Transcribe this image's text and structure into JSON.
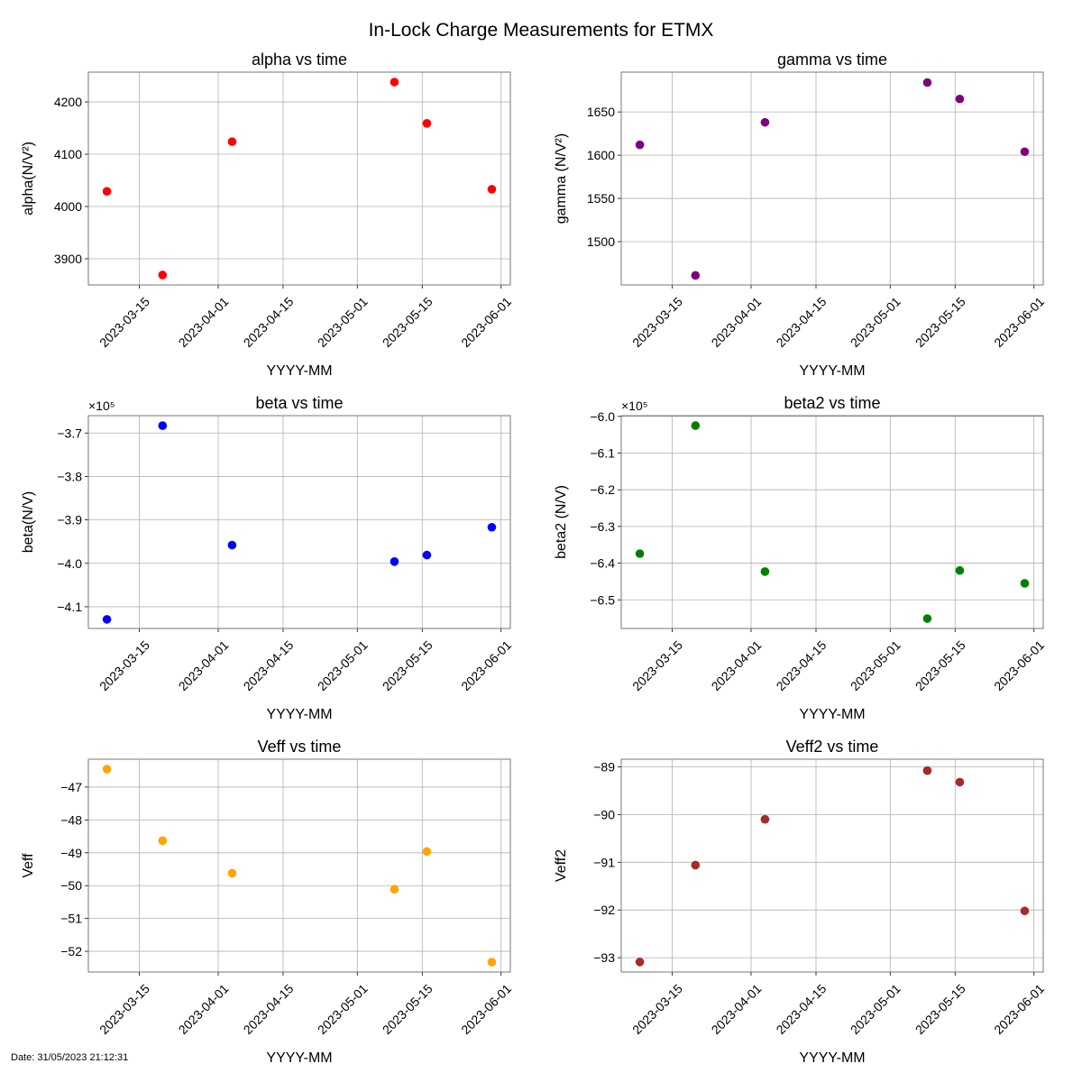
{
  "chart_data": {
    "title": "In-Lock Charge Measurements for ETMX",
    "footer": "Date: 31/05/2023 21:12:31",
    "xlim": [
      "2023-03-04",
      "2023-06-03"
    ],
    "x_ticks": [
      "2023-03-15",
      "2023-04-01",
      "2023-04-15",
      "2023-05-01",
      "2023-05-15",
      "2023-06-01"
    ],
    "x": [
      "2023-03-08",
      "2023-03-20",
      "2023-04-04",
      "2023-05-09",
      "2023-05-16",
      "2023-05-30"
    ],
    "grid": true,
    "subplots": [
      {
        "type": "scatter",
        "title": "alpha vs time",
        "xlabel": "YYYY-MM",
        "ylabel": "alpha(N/V²)",
        "color": "#ff0000",
        "ylim": [
          3850,
          4257
        ],
        "y_ticks": [
          3900,
          4000,
          4100,
          4200
        ],
        "y_tick_labels": [
          "3900",
          "4000",
          "4100",
          "4200"
        ],
        "offset": "",
        "values": [
          4029,
          3869,
          4124,
          4238,
          4159,
          4033
        ]
      },
      {
        "type": "scatter",
        "title": "gamma vs time",
        "xlabel": "YYYY-MM",
        "ylabel": "gamma (N/V²)",
        "color": "#800080",
        "ylim": [
          1450,
          1696
        ],
        "y_ticks": [
          1500,
          1550,
          1600,
          1650
        ],
        "y_tick_labels": [
          "1500",
          "1550",
          "1600",
          "1650"
        ],
        "offset": "",
        "values": [
          1612,
          1461,
          1638,
          1684,
          1665,
          1604
        ]
      },
      {
        "type": "scatter",
        "title": "beta vs time",
        "xlabel": "YYYY-MM",
        "ylabel": "beta(N/V)",
        "color": "#0000ff",
        "ylim": [
          -415000,
          -366000
        ],
        "y_ticks": [
          -410000,
          -400000,
          -390000,
          -380000,
          -370000
        ],
        "y_tick_labels": [
          "−4.1",
          "−4.0",
          "−3.9",
          "−3.8",
          "−3.7"
        ],
        "offset": "×10⁵",
        "values": [
          -412900,
          -368300,
          -395800,
          -399600,
          -398100,
          -391700
        ]
      },
      {
        "type": "scatter",
        "title": "beta2 vs time",
        "xlabel": "YYYY-MM",
        "ylabel": "beta2 (N/V)",
        "color": "#008000",
        "ylim": [
          -657800,
          -599800
        ],
        "y_ticks": [
          -650000,
          -640000,
          -630000,
          -620000,
          -610000,
          -600000
        ],
        "y_tick_labels": [
          "−6.5",
          "−6.4",
          "−6.3",
          "−6.2",
          "−6.1",
          "−6.0"
        ],
        "offset": "×10⁵",
        "values": [
          -637400,
          -602500,
          -642300,
          -655100,
          -642000,
          -645500
        ]
      },
      {
        "type": "scatter",
        "title": "Veff vs time",
        "xlabel": "YYYY-MM",
        "ylabel": "Veff",
        "color": "#ffa500",
        "ylim": [
          -52.63,
          -46.15
        ],
        "y_ticks": [
          -52,
          -51,
          -50,
          -49,
          -48,
          -47
        ],
        "y_tick_labels": [
          "−52",
          "−51",
          "−50",
          "−49",
          "−48",
          "−47"
        ],
        "offset": "",
        "values": [
          -46.45,
          -48.63,
          -49.62,
          -50.11,
          -48.96,
          -52.33
        ]
      },
      {
        "type": "scatter",
        "title": "Veff2 vs time",
        "xlabel": "YYYY-MM",
        "ylabel": "Veff2",
        "color": "#a52a2a",
        "ylim": [
          -93.3,
          -88.84
        ],
        "y_ticks": [
          -93,
          -92,
          -91,
          -90,
          -89
        ],
        "y_tick_labels": [
          "−93",
          "−92",
          "−91",
          "−90",
          "−89"
        ],
        "offset": "",
        "values": [
          -93.09,
          -91.06,
          -90.1,
          -89.08,
          -89.32,
          -92.02
        ]
      }
    ]
  }
}
